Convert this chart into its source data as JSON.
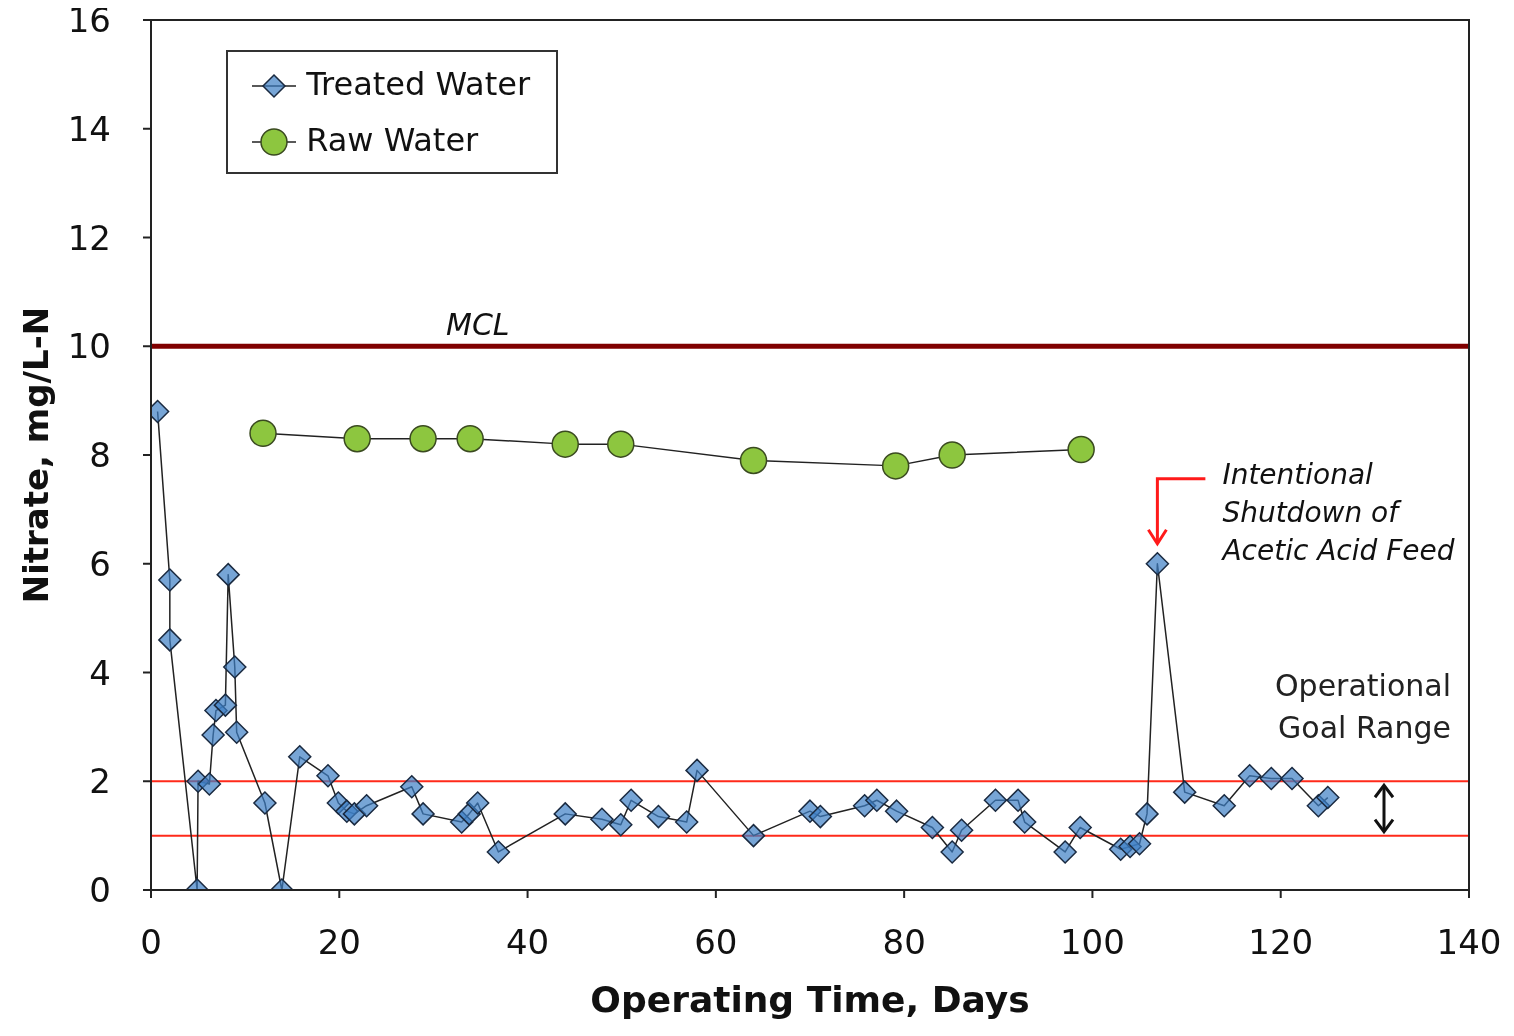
{
  "chart_data": {
    "type": "line",
    "xlabel": "Operating Time, Days",
    "ylabel": "Nitrate, mg/L-N",
    "xlim": [
      0,
      140
    ],
    "xticks": [
      0,
      20,
      40,
      60,
      80,
      100,
      120,
      140
    ],
    "ylim": [
      0,
      16
    ],
    "yticks": [
      0,
      2,
      4,
      6,
      8,
      10,
      12,
      14,
      16
    ],
    "grid": false,
    "legend": "top left",
    "series": [
      {
        "name": "Treated Water",
        "color": "#3d7fc4",
        "marker": "diamond",
        "x": [
          0.7,
          2.0,
          2.0,
          4.9,
          5.0,
          6.2,
          6.6,
          6.9,
          7.9,
          8.2,
          8.9,
          9.1,
          12.1,
          13.9,
          15.8,
          18.8,
          19.9,
          20.8,
          21.6,
          22.9,
          27.7,
          28.9,
          33.0,
          33.8,
          34.7,
          36.9,
          44.0,
          47.9,
          49.9,
          51.0,
          53.9,
          56.9,
          58.0,
          64.0,
          70.0,
          71.1,
          75.8,
          77.1,
          79.2,
          83.0,
          85.1,
          86.1,
          89.7,
          92.1,
          92.8,
          97.1,
          98.7,
          103.0,
          104.0,
          105.0,
          105.8,
          106.9,
          109.8,
          114.0,
          116.7,
          119.0,
          121.2,
          124.0,
          125.0
        ],
        "values": [
          8.8,
          5.7,
          4.6,
          0,
          2.0,
          1.95,
          2.85,
          3.3,
          3.4,
          5.8,
          4.1,
          2.9,
          1.6,
          0,
          2.45,
          2.1,
          1.6,
          1.45,
          1.4,
          1.55,
          1.9,
          1.4,
          1.25,
          1.4,
          1.6,
          0.7,
          1.4,
          1.3,
          1.2,
          1.65,
          1.35,
          1.25,
          2.2,
          1.0,
          1.45,
          1.35,
          1.55,
          1.65,
          1.45,
          1.15,
          0.7,
          1.1,
          1.65,
          1.65,
          1.25,
          0.7,
          1.15,
          0.75,
          0.8,
          0.85,
          1.4,
          6.0,
          1.8,
          1.55,
          2.1,
          2.05,
          2.05,
          1.55,
          1.7
        ]
      },
      {
        "name": "Raw Water",
        "color": "#8dc63f",
        "marker": "circle",
        "x": [
          11.9,
          21.9,
          28.9,
          33.9,
          44.0,
          49.9,
          64.0,
          79.1,
          85.1,
          98.8
        ],
        "values": [
          8.4,
          8.3,
          8.3,
          8.3,
          8.2,
          8.2,
          7.9,
          7.8,
          8.0,
          8.1
        ]
      }
    ],
    "ref_lines": [
      {
        "axis": "y",
        "value": 10,
        "label": "MCL",
        "color": "#800000"
      },
      {
        "axis": "y",
        "value": 2,
        "label": null,
        "color": "#ff2a1a"
      },
      {
        "axis": "y",
        "value": 1,
        "label": null,
        "color": "#ff2a1a"
      }
    ],
    "annotations": [
      {
        "text": "Intentional Shutdown of Acetic Acid Feed",
        "x": 106.9,
        "y": 6.0
      },
      "Operational Goal Range"
    ]
  }
}
